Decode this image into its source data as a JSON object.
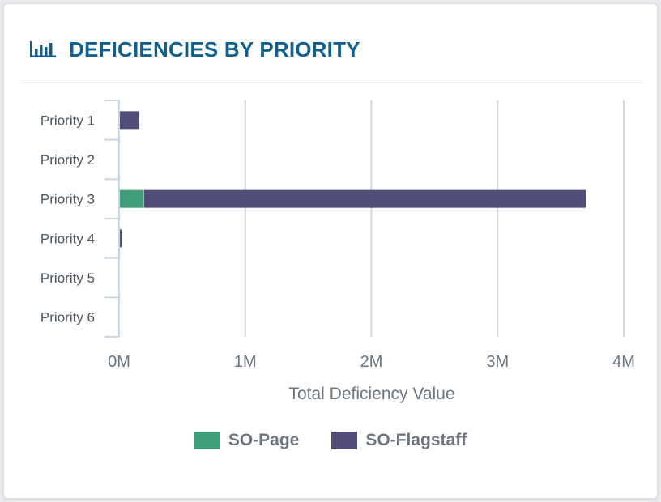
{
  "card": {
    "title": "DEFICIENCIES BY PRIORITY",
    "title_icon": "bar-chart-icon",
    "title_color": "#0f5f8e"
  },
  "chart_data": {
    "type": "bar",
    "orientation": "horizontal",
    "stacked": true,
    "categories": [
      "Priority 1",
      "Priority 2",
      "Priority 3",
      "Priority 4",
      "Priority 5",
      "Priority 6"
    ],
    "series": [
      {
        "name": "SO-Page",
        "color": "#3f9e77",
        "values": [
          0,
          0,
          190000,
          0,
          0,
          0
        ]
      },
      {
        "name": "SO-Flagstaff",
        "color": "#514e7a",
        "values": [
          160000,
          0,
          3510000,
          15000,
          0,
          0
        ]
      }
    ],
    "xlabel": "Total Deficiency Value",
    "xlim": [
      0,
      4000000
    ],
    "xticks": [
      0,
      1000000,
      2000000,
      3000000,
      4000000
    ],
    "xtick_labels": [
      "0M",
      "1M",
      "2M",
      "3M",
      "4M"
    ],
    "grid": true,
    "legend_position": "bottom"
  }
}
